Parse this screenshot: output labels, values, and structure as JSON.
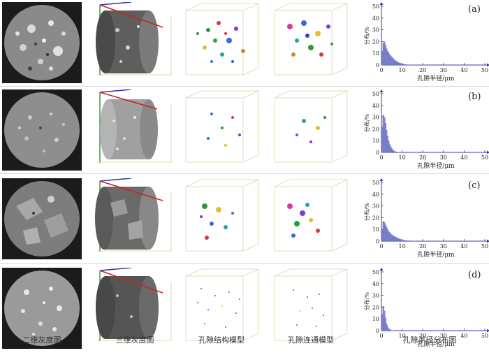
{
  "column_captions": [
    "二维灰度图",
    "三维灰度图",
    "孔隙结构模型",
    "孔隙连通模型",
    "孔隙半径分布图"
  ],
  "panels": [
    "(a)",
    "(b)",
    "(c)",
    "(d)"
  ],
  "chart_data": [
    {
      "type": "bar",
      "panel": "(a)",
      "xlabel": "孔隙半径/μm",
      "ylabel": "分布/%",
      "xlim": [
        0,
        50
      ],
      "ylim": [
        0,
        50
      ],
      "xticks": [
        0,
        10,
        20,
        30,
        40,
        50
      ],
      "yticks": [
        0,
        10,
        20,
        30,
        40,
        50
      ],
      "x": [
        0.5,
        1,
        1.5,
        2,
        2.5,
        3,
        3.5,
        4,
        4.5,
        5,
        5.5,
        6,
        6.5,
        7,
        7.5,
        8,
        8.5,
        9,
        9.5,
        10,
        10.5,
        11,
        11.5,
        12,
        13,
        14,
        15,
        16,
        17,
        18,
        19,
        20
      ],
      "values": [
        12,
        19,
        20,
        17,
        14,
        12,
        10.5,
        9,
        8,
        7,
        6,
        5,
        4.3,
        3.6,
        3,
        2.5,
        2,
        1.7,
        1.4,
        1.1,
        0.9,
        0.7,
        0.6,
        0.5,
        0.4,
        0.3,
        0.2,
        0.2,
        0.1,
        0.1,
        0.1,
        0.1
      ]
    },
    {
      "type": "bar",
      "panel": "(b)",
      "xlabel": "孔隙半径/μm",
      "ylabel": "分布/%",
      "xlim": [
        0,
        50
      ],
      "ylim": [
        0,
        50
      ],
      "xticks": [
        0,
        10,
        20,
        30,
        40,
        50
      ],
      "yticks": [
        0,
        10,
        20,
        30,
        40,
        50
      ],
      "x": [
        0.5,
        1,
        1.5,
        2,
        2.5,
        3,
        3.5,
        4,
        4.5,
        5,
        5.5,
        6,
        6.5,
        7,
        7.5,
        8,
        9,
        10
      ],
      "values": [
        22,
        32,
        30,
        25,
        19,
        14,
        10,
        7,
        5,
        3.5,
        2.3,
        1.5,
        1,
        0.6,
        0.4,
        0.3,
        0.2,
        0.1
      ]
    },
    {
      "type": "bar",
      "panel": "(c)",
      "xlabel": "孔隙半径/μm",
      "ylabel": "分布/%",
      "xlim": [
        0,
        50
      ],
      "ylim": [
        0,
        50
      ],
      "xticks": [
        0,
        10,
        20,
        30,
        40,
        50
      ],
      "yticks": [
        0,
        10,
        20,
        30,
        40,
        50
      ],
      "x": [
        0.5,
        1,
        1.5,
        2,
        2.5,
        3,
        3.5,
        4,
        4.5,
        5,
        5.5,
        6,
        6.5,
        7,
        7.5,
        8,
        8.5,
        9,
        9.5,
        10,
        11,
        12,
        13,
        14,
        15,
        16,
        18,
        20
      ],
      "values": [
        10,
        17,
        16,
        14,
        12,
        10,
        8.5,
        7.5,
        6.5,
        5.5,
        5,
        4.5,
        4,
        3.5,
        3,
        2.6,
        2.2,
        1.9,
        1.6,
        1.3,
        1,
        0.8,
        0.6,
        0.5,
        0.4,
        0.3,
        0.2,
        0.1
      ]
    },
    {
      "type": "bar",
      "panel": "(d)",
      "xlabel": "孔隙半径/μm",
      "ylabel": "分布/%",
      "xlim": [
        0,
        50
      ],
      "ylim": [
        0,
        50
      ],
      "xticks": [
        0,
        10,
        20,
        30,
        40,
        50
      ],
      "yticks": [
        0,
        10,
        20,
        30,
        40,
        50
      ],
      "x": [
        0.5,
        1,
        1.5,
        2,
        2.5,
        3,
        3.5,
        4,
        4.5,
        5,
        6
      ],
      "values": [
        14,
        21,
        17,
        11,
        6,
        3.5,
        2,
        1.2,
        0.6,
        0.3,
        0.1
      ]
    }
  ]
}
